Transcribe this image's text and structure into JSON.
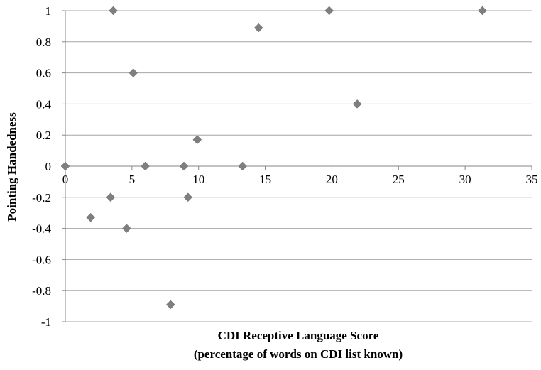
{
  "chart_data": {
    "type": "scatter",
    "title": "",
    "xlabel": [
      "CDI Receptive Language Score",
      "(percentage of words on CDI list known)"
    ],
    "ylabel": "Pointing Handedness",
    "xlim": [
      0,
      35
    ],
    "ylim": [
      -1,
      1
    ],
    "x_ticks": [
      "0",
      "5",
      "10",
      "15",
      "20",
      "25",
      "30",
      "35"
    ],
    "y_ticks": [
      "1",
      "0.8",
      "0.6",
      "0.4",
      "0.2",
      "0",
      "-0.2",
      "-0.4",
      "-0.6",
      "-0.8",
      "-1"
    ],
    "grid": "horizontal",
    "marker": "diamond",
    "marker_color": "#7f7f7f",
    "points": [
      {
        "x": 0,
        "y": 0
      },
      {
        "x": 1.9,
        "y": -0.33
      },
      {
        "x": 3.4,
        "y": -0.2
      },
      {
        "x": 3.6,
        "y": 1
      },
      {
        "x": 4.6,
        "y": -0.4
      },
      {
        "x": 5.1,
        "y": 0.6
      },
      {
        "x": 6.0,
        "y": 0
      },
      {
        "x": 7.9,
        "y": -0.89
      },
      {
        "x": 8.9,
        "y": 0
      },
      {
        "x": 9.2,
        "y": -0.2
      },
      {
        "x": 9.9,
        "y": 0.17
      },
      {
        "x": 13.3,
        "y": 0
      },
      {
        "x": 14.5,
        "y": 0.89
      },
      {
        "x": 19.8,
        "y": 1
      },
      {
        "x": 21.9,
        "y": 0.4
      },
      {
        "x": 31.3,
        "y": 1
      }
    ]
  }
}
